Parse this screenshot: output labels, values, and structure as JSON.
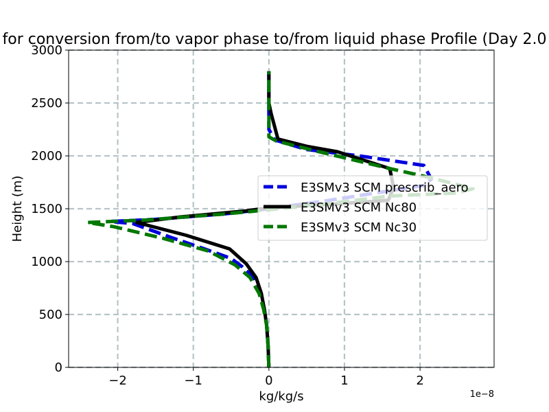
{
  "chart_data": {
    "type": "line",
    "title": "for conversion from/to vapor phase to/from liquid phase Profile (Day 2.0",
    "xlabel": "kg/kg/s",
    "ylabel": "Height (m)",
    "x_offset_label": "1e−8",
    "xlim": [
      -2.65,
      2.98
    ],
    "ylim": [
      0,
      3000
    ],
    "xticks": [
      -2,
      -1,
      0,
      1,
      2
    ],
    "xtick_labels": [
      "−2",
      "−1",
      "0",
      "1",
      "2"
    ],
    "yticks": [
      0,
      500,
      1000,
      1500,
      2000,
      2500,
      3000
    ],
    "ytick_labels": [
      "0",
      "500",
      "1000",
      "1500",
      "2000",
      "2500",
      "3000"
    ],
    "grid": true,
    "legend_position": "center-right",
    "series": [
      {
        "name": "E3SMv3 SCM prescrib_aero",
        "color": "#0000dd",
        "style": "dashed",
        "points": [
          [
            0,
            0
          ],
          [
            -0.01,
            200
          ],
          [
            -0.03,
            400
          ],
          [
            -0.06,
            550
          ],
          [
            -0.11,
            700
          ],
          [
            -0.2,
            850
          ],
          [
            -0.35,
            950
          ],
          [
            -0.5,
            1030
          ],
          [
            -0.85,
            1120
          ],
          [
            -1.3,
            1230
          ],
          [
            -1.8,
            1360
          ],
          [
            -2.1,
            1380
          ],
          [
            -1.5,
            1400
          ],
          [
            -0.6,
            1450
          ],
          [
            0,
            1500
          ],
          [
            0.8,
            1580
          ],
          [
            1.6,
            1670
          ],
          [
            2.05,
            1720
          ],
          [
            2.15,
            1780
          ],
          [
            2.05,
            1910
          ],
          [
            1.2,
            2000
          ],
          [
            0.5,
            2060
          ],
          [
            0.08,
            2150
          ],
          [
            0,
            2250
          ],
          [
            0,
            2500
          ],
          [
            0,
            2800
          ]
        ]
      },
      {
        "name": "E3SMv3 SCM Nc80",
        "color": "#000000",
        "style": "solid",
        "points": [
          [
            0,
            0
          ],
          [
            -0.01,
            200
          ],
          [
            -0.03,
            400
          ],
          [
            -0.06,
            550
          ],
          [
            -0.1,
            700
          ],
          [
            -0.17,
            850
          ],
          [
            -0.3,
            980
          ],
          [
            -0.52,
            1120
          ],
          [
            -1.1,
            1250
          ],
          [
            -1.75,
            1370
          ],
          [
            -1.2,
            1420
          ],
          [
            -0.3,
            1480
          ],
          [
            0,
            1510
          ],
          [
            0.8,
            1540
          ],
          [
            1.58,
            1580
          ],
          [
            1.65,
            1700
          ],
          [
            1.6,
            1880
          ],
          [
            0.9,
            2040
          ],
          [
            0.5,
            2090
          ],
          [
            0.12,
            2160
          ],
          [
            0.03,
            2400
          ],
          [
            0,
            2500
          ],
          [
            0,
            2800
          ]
        ]
      },
      {
        "name": "E3SMv3 SCM Nc30",
        "color": "#007700",
        "style": "dashed",
        "points": [
          [
            0,
            0
          ],
          [
            -0.01,
            200
          ],
          [
            -0.03,
            400
          ],
          [
            -0.07,
            550
          ],
          [
            -0.13,
            700
          ],
          [
            -0.25,
            850
          ],
          [
            -0.45,
            970
          ],
          [
            -0.8,
            1100
          ],
          [
            -1.4,
            1220
          ],
          [
            -2.05,
            1330
          ],
          [
            -2.4,
            1370
          ],
          [
            -1.6,
            1395
          ],
          [
            -0.6,
            1450
          ],
          [
            0,
            1490
          ],
          [
            0.8,
            1550
          ],
          [
            1.6,
            1620
          ],
          [
            2.5,
            1650
          ],
          [
            2.7,
            1690
          ],
          [
            2.1,
            1800
          ],
          [
            1.6,
            1880
          ],
          [
            0.6,
            2050
          ],
          [
            0.1,
            2140
          ],
          [
            0,
            2180
          ],
          [
            0,
            2500
          ],
          [
            0,
            2800
          ]
        ]
      }
    ]
  }
}
